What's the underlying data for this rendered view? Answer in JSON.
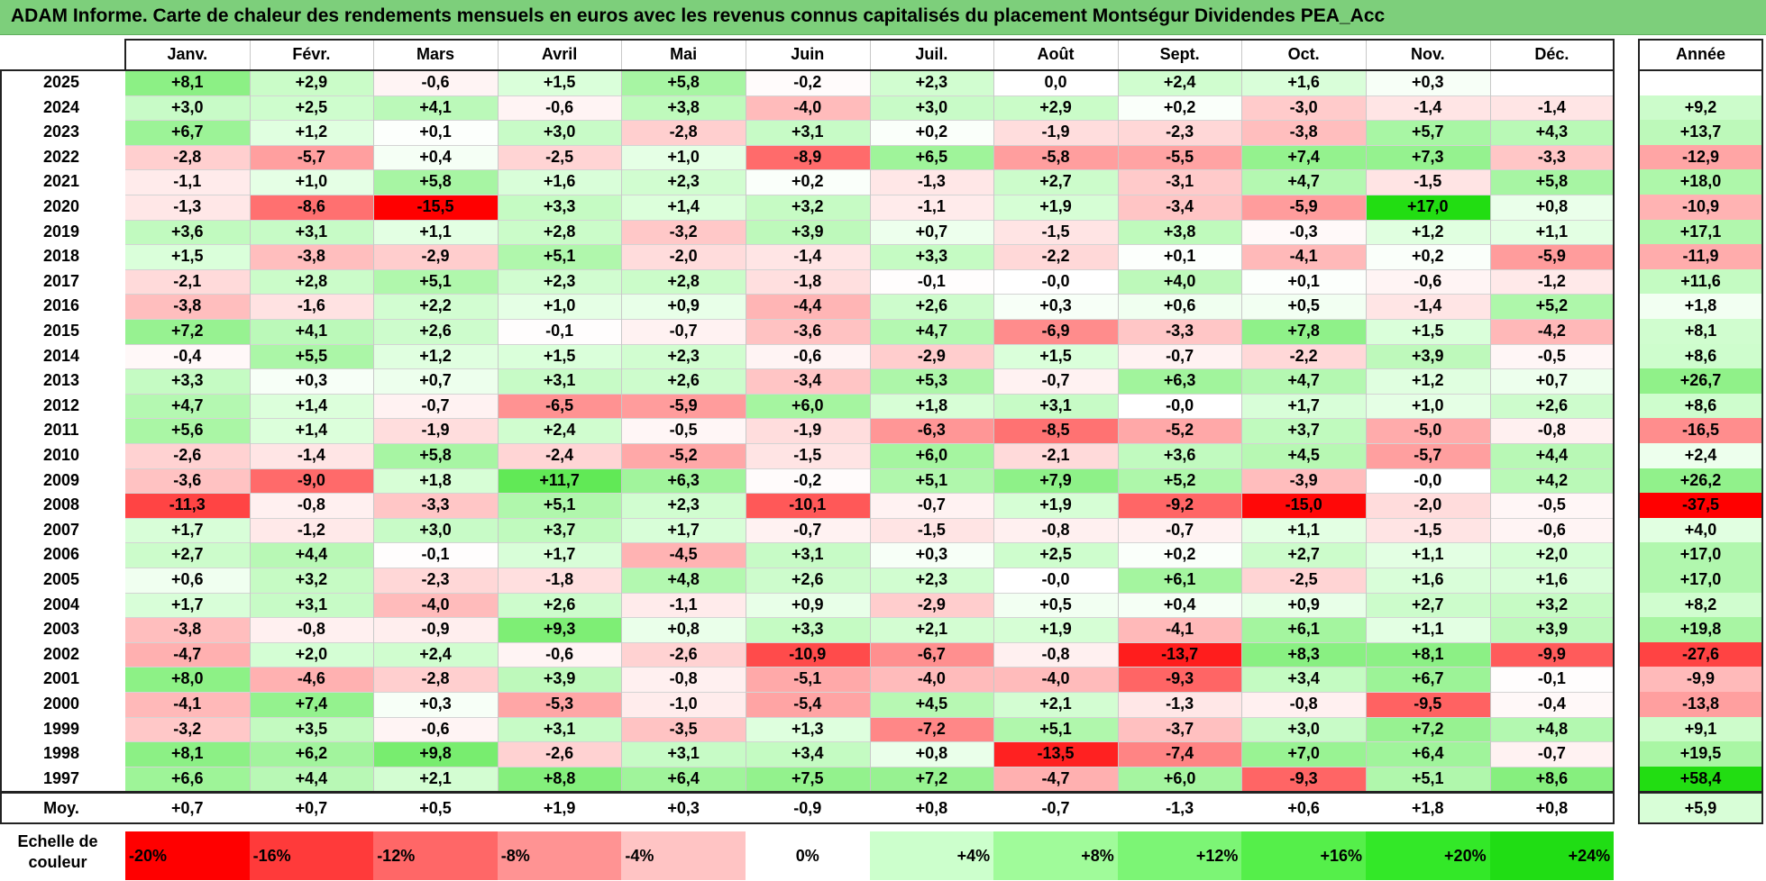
{
  "title": "ADAM Informe. Carte de chaleur des rendements mensuels en euros avec les revenus connus capitalisés du placement Montségur Dividendes PEA_Acc",
  "chart_data": {
    "type": "heatmap",
    "columns": [
      "Janv.",
      "Févr.",
      "Mars",
      "Avril",
      "Mai",
      "Juin",
      "Juil.",
      "Août",
      "Sept.",
      "Oct.",
      "Nov.",
      "Déc."
    ],
    "year_column_label": "Année",
    "rows": [
      {
        "year": "2025",
        "months": [
          "+8,1",
          "+2,9",
          "-0,6",
          "+1,5",
          "+5,8",
          "-0,2",
          "+2,3",
          "0,0",
          "+2,4",
          "+1,6",
          "+0,3",
          ""
        ],
        "annual": ""
      },
      {
        "year": "2024",
        "months": [
          "+3,0",
          "+2,5",
          "+4,1",
          "-0,6",
          "+3,8",
          "-4,0",
          "+3,0",
          "+2,9",
          "+0,2",
          "-3,0",
          "-1,4",
          "-1,4"
        ],
        "annual": "+9,2"
      },
      {
        "year": "2023",
        "months": [
          "+6,7",
          "+1,2",
          "+0,1",
          "+3,0",
          "-2,8",
          "+3,1",
          "+0,2",
          "-1,9",
          "-2,3",
          "-3,8",
          "+5,7",
          "+4,3"
        ],
        "annual": "+13,7"
      },
      {
        "year": "2022",
        "months": [
          "-2,8",
          "-5,7",
          "+0,4",
          "-2,5",
          "+1,0",
          "-8,9",
          "+6,5",
          "-5,8",
          "-5,5",
          "+7,4",
          "+7,3",
          "-3,3"
        ],
        "annual": "-12,9"
      },
      {
        "year": "2021",
        "months": [
          "-1,1",
          "+1,0",
          "+5,8",
          "+1,6",
          "+2,3",
          "+0,2",
          "-1,3",
          "+2,7",
          "-3,1",
          "+4,7",
          "-1,5",
          "+5,8"
        ],
        "annual": "+18,0"
      },
      {
        "year": "2020",
        "months": [
          "-1,3",
          "-8,6",
          "-15,5",
          "+3,3",
          "+1,4",
          "+3,2",
          "-1,1",
          "+1,9",
          "-3,4",
          "-5,9",
          "+17,0",
          "+0,8"
        ],
        "annual": "-10,9"
      },
      {
        "year": "2019",
        "months": [
          "+3,6",
          "+3,1",
          "+1,1",
          "+2,8",
          "-3,2",
          "+3,9",
          "+0,7",
          "-1,5",
          "+3,8",
          "-0,3",
          "+1,2",
          "+1,1"
        ],
        "annual": "+17,1"
      },
      {
        "year": "2018",
        "months": [
          "+1,5",
          "-3,8",
          "-2,9",
          "+5,1",
          "-2,0",
          "-1,4",
          "+3,3",
          "-2,2",
          "+0,1",
          "-4,1",
          "+0,2",
          "-5,9"
        ],
        "annual": "-11,9"
      },
      {
        "year": "2017",
        "months": [
          "-2,1",
          "+2,8",
          "+5,1",
          "+2,3",
          "+2,8",
          "-1,8",
          "-0,1",
          "-0,0",
          "+4,0",
          "+0,1",
          "-0,6",
          "-1,2"
        ],
        "annual": "+11,6"
      },
      {
        "year": "2016",
        "months": [
          "-3,8",
          "-1,6",
          "+2,2",
          "+1,0",
          "+0,9",
          "-4,4",
          "+2,6",
          "+0,3",
          "+0,6",
          "+0,5",
          "-1,4",
          "+5,2"
        ],
        "annual": "+1,8"
      },
      {
        "year": "2015",
        "months": [
          "+7,2",
          "+4,1",
          "+2,6",
          "-0,1",
          "-0,7",
          "-3,6",
          "+4,7",
          "-6,9",
          "-3,3",
          "+7,8",
          "+1,5",
          "-4,2"
        ],
        "annual": "+8,1"
      },
      {
        "year": "2014",
        "months": [
          "-0,4",
          "+5,5",
          "+1,2",
          "+1,5",
          "+2,3",
          "-0,6",
          "-2,9",
          "+1,5",
          "-0,7",
          "-2,2",
          "+3,9",
          "-0,5"
        ],
        "annual": "+8,6"
      },
      {
        "year": "2013",
        "months": [
          "+3,3",
          "+0,3",
          "+0,7",
          "+3,1",
          "+2,6",
          "-3,4",
          "+5,3",
          "-0,7",
          "+6,3",
          "+4,7",
          "+1,2",
          "+0,7"
        ],
        "annual": "+26,7"
      },
      {
        "year": "2012",
        "months": [
          "+4,7",
          "+1,4",
          "-0,7",
          "-6,5",
          "-5,9",
          "+6,0",
          "+1,8",
          "+3,1",
          "-0,0",
          "+1,7",
          "+1,0",
          "+2,6"
        ],
        "annual": "+8,6"
      },
      {
        "year": "2011",
        "months": [
          "+5,6",
          "+1,4",
          "-1,9",
          "+2,4",
          "-0,5",
          "-1,9",
          "-6,3",
          "-8,5",
          "-5,2",
          "+3,7",
          "-5,0",
          "-0,8"
        ],
        "annual": "-16,5"
      },
      {
        "year": "2010",
        "months": [
          "-2,6",
          "-1,4",
          "+5,8",
          "-2,4",
          "-5,2",
          "-1,5",
          "+6,0",
          "-2,1",
          "+3,6",
          "+4,5",
          "-5,7",
          "+4,4"
        ],
        "annual": "+2,4"
      },
      {
        "year": "2009",
        "months": [
          "-3,6",
          "-9,0",
          "+1,8",
          "+11,7",
          "+6,3",
          "-0,2",
          "+5,1",
          "+7,9",
          "+5,2",
          "-3,9",
          "-0,0",
          "+4,2"
        ],
        "annual": "+26,2"
      },
      {
        "year": "2008",
        "months": [
          "-11,3",
          "-0,8",
          "-3,3",
          "+5,1",
          "+2,3",
          "-10,1",
          "-0,7",
          "+1,9",
          "-9,2",
          "-15,0",
          "-2,0",
          "-0,5"
        ],
        "annual": "-37,5"
      },
      {
        "year": "2007",
        "months": [
          "+1,7",
          "-1,2",
          "+3,0",
          "+3,7",
          "+1,7",
          "-0,7",
          "-1,5",
          "-0,8",
          "-0,7",
          "+1,1",
          "-1,5",
          "-0,6"
        ],
        "annual": "+4,0"
      },
      {
        "year": "2006",
        "months": [
          "+2,7",
          "+4,4",
          "-0,1",
          "+1,7",
          "-4,5",
          "+3,1",
          "+0,3",
          "+2,5",
          "+0,2",
          "+2,7",
          "+1,1",
          "+2,0"
        ],
        "annual": "+17,0"
      },
      {
        "year": "2005",
        "months": [
          "+0,6",
          "+3,2",
          "-2,3",
          "-1,8",
          "+4,8",
          "+2,6",
          "+2,3",
          "-0,0",
          "+6,1",
          "-2,5",
          "+1,6",
          "+1,6"
        ],
        "annual": "+17,0"
      },
      {
        "year": "2004",
        "months": [
          "+1,7",
          "+3,1",
          "-4,0",
          "+2,6",
          "-1,1",
          "+0,9",
          "-2,9",
          "+0,5",
          "+0,4",
          "+0,9",
          "+2,7",
          "+3,2"
        ],
        "annual": "+8,2"
      },
      {
        "year": "2003",
        "months": [
          "-3,8",
          "-0,8",
          "-0,9",
          "+9,3",
          "+0,8",
          "+3,3",
          "+2,1",
          "+1,9",
          "-4,1",
          "+6,1",
          "+1,1",
          "+3,9"
        ],
        "annual": "+19,8"
      },
      {
        "year": "2002",
        "months": [
          "-4,7",
          "+2,0",
          "+2,4",
          "-0,6",
          "-2,6",
          "-10,9",
          "-6,7",
          "-0,8",
          "-13,7",
          "+8,3",
          "+8,1",
          "-9,9"
        ],
        "annual": "-27,6"
      },
      {
        "year": "2001",
        "months": [
          "+8,0",
          "-4,6",
          "-2,8",
          "+3,9",
          "-0,8",
          "-5,1",
          "-4,0",
          "-4,0",
          "-9,3",
          "+3,4",
          "+6,7",
          "-0,1"
        ],
        "annual": "-9,9"
      },
      {
        "year": "2000",
        "months": [
          "-4,1",
          "+7,4",
          "+0,3",
          "-5,3",
          "-1,0",
          "-5,4",
          "+4,5",
          "+2,1",
          "-1,3",
          "-0,8",
          "-9,5",
          "-0,4"
        ],
        "annual": "-13,8"
      },
      {
        "year": "1999",
        "months": [
          "-3,2",
          "+3,5",
          "-0,6",
          "+3,1",
          "-3,5",
          "+1,3",
          "-7,2",
          "+5,1",
          "-3,7",
          "+3,0",
          "+7,2",
          "+4,8"
        ],
        "annual": "+9,1"
      },
      {
        "year": "1998",
        "months": [
          "+8,1",
          "+6,2",
          "+9,8",
          "-2,6",
          "+3,1",
          "+3,4",
          "+0,8",
          "-13,5",
          "-7,4",
          "+7,0",
          "+6,4",
          "-0,7"
        ],
        "annual": "+19,5"
      },
      {
        "year": "1997",
        "months": [
          "+6,6",
          "+4,4",
          "+2,1",
          "+8,8",
          "+6,4",
          "+7,5",
          "+7,2",
          "-4,7",
          "+6,0",
          "-9,3",
          "+5,1",
          "+8,6"
        ],
        "annual": "+58,4"
      }
    ],
    "average": {
      "label": "Moy.",
      "months": [
        "+0,7",
        "+0,7",
        "+0,5",
        "+1,9",
        "+0,3",
        "-0,9",
        "+0,8",
        "-0,7",
        "-1,3",
        "+0,6",
        "+1,8",
        "+0,8"
      ],
      "annual": "+5,9"
    },
    "color_scale": {
      "label": "Echelle de couleur",
      "stops": [
        {
          "label": "-20%",
          "value": -20,
          "color": "#ff0000"
        },
        {
          "label": "-16%",
          "value": -16,
          "color": "#ff3a3a"
        },
        {
          "label": "-12%",
          "value": -12,
          "color": "#ff6767"
        },
        {
          "label": "-8%",
          "value": -8,
          "color": "#ff9393"
        },
        {
          "label": "-4%",
          "value": -4,
          "color": "#ffc4c4"
        },
        {
          "label": "0%",
          "value": 0,
          "color": "#ffffff"
        },
        {
          "label": "+4%",
          "value": 4,
          "color": "#ccffcc"
        },
        {
          "label": "+8%",
          "value": 8,
          "color": "#a0fb9a"
        },
        {
          "label": "+12%",
          "value": 12,
          "color": "#7cf575"
        },
        {
          "label": "+16%",
          "value": 16,
          "color": "#55ef4a"
        },
        {
          "label": "+20%",
          "value": 20,
          "color": "#33e828"
        },
        {
          "label": "+24%",
          "value": 24,
          "color": "#20dd14"
        }
      ]
    },
    "monthly_color_range": [
      -15.5,
      17.0
    ],
    "annual_color_range": [
      -37.5,
      58.4
    ]
  }
}
